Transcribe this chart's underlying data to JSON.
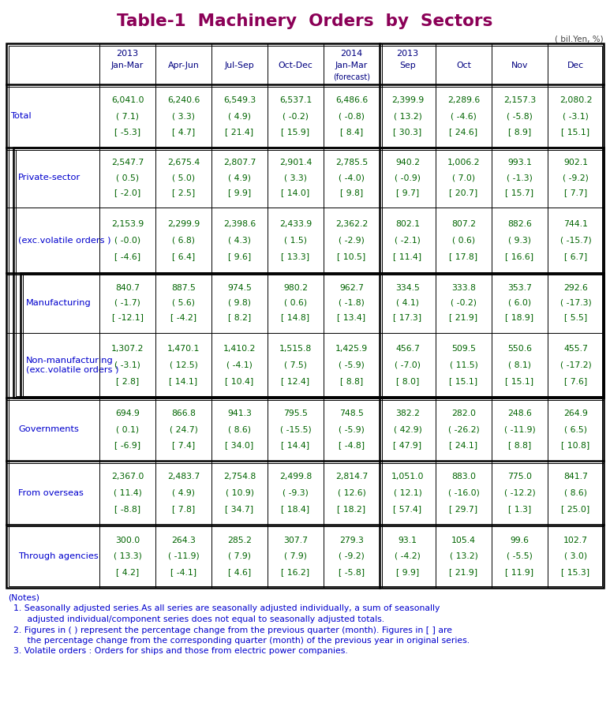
{
  "title": "Table-1  Machinery  Orders  by  Sectors",
  "title_color": "#8B0057",
  "unit_text": "( bil.Yen, %)",
  "header_color": "#000080",
  "data_color": "#006400",
  "label_color": "#0000CD",
  "notes_color": "#0000CD",
  "period_labels": [
    "Jan-Mar",
    "Apr-Jun",
    "Jul-Sep",
    "Oct-Dec",
    "Jan-Mar",
    "Sep",
    "Oct",
    "Nov",
    "Dec"
  ],
  "year_row1": [
    "2013",
    "",
    "",
    "",
    "2014",
    "2013",
    "",
    "",
    ""
  ],
  "forecast_col": 4,
  "row_sections": [
    {
      "label": "Total",
      "indent": 0,
      "group_border": 0,
      "lines": [
        [
          "6,041.0",
          "6,240.6",
          "6,549.3",
          "6,537.1",
          "6,486.6",
          "2,399.9",
          "2,289.6",
          "2,157.3",
          "2,080.2"
        ],
        [
          "( 7.1)",
          "( 3.3)",
          "( 4.9)",
          "( -0.2)",
          "( -0.8)",
          "( 13.2)",
          "( -4.6)",
          "( -5.8)",
          "( -3.1)"
        ],
        [
          "[ -5.3]",
          "[ 4.7]",
          "[ 21.4]",
          "[ 15.9]",
          "[ 8.4]",
          "[ 30.3]",
          "[ 24.6]",
          "[ 8.9]",
          "[ 15.1]"
        ]
      ]
    },
    {
      "label": "Private-sector",
      "indent": 1,
      "group_border": 1,
      "lines": [
        [
          "2,547.7",
          "2,675.4",
          "2,807.7",
          "2,901.4",
          "2,785.5",
          "940.2",
          "1,006.2",
          "993.1",
          "902.1"
        ],
        [
          "( 0.5)",
          "( 5.0)",
          "( 4.9)",
          "( 3.3)",
          "( -4.0)",
          "( -0.9)",
          "( 7.0)",
          "( -1.3)",
          "( -9.2)"
        ],
        [
          "[ -2.0]",
          "[ 2.5]",
          "[ 9.9]",
          "[ 14.0]",
          "[ 9.8]",
          "[ 9.7]",
          "[ 20.7]",
          "[ 15.7]",
          "[ 7.7]"
        ]
      ]
    },
    {
      "label": "(exc.volatile orders )",
      "indent": 1,
      "group_border": 0,
      "lines": [
        [
          "2,153.9",
          "2,299.9",
          "2,398.6",
          "2,433.9",
          "2,362.2",
          "802.1",
          "807.2",
          "882.6",
          "744.1"
        ],
        [
          "( -0.0)",
          "( 6.8)",
          "( 4.3)",
          "( 1.5)",
          "( -2.9)",
          "( -2.1)",
          "( 0.6)",
          "( 9.3)",
          "( -15.7)"
        ],
        [
          "[ -4.6]",
          "[ 6.4]",
          "[ 9.6]",
          "[ 13.3]",
          "[ 10.5]",
          "[ 11.4]",
          "[ 17.8]",
          "[ 16.6]",
          "[ 6.7]"
        ]
      ]
    },
    {
      "label": "Manufacturing",
      "indent": 2,
      "group_border": 2,
      "lines": [
        [
          "840.7",
          "887.5",
          "974.5",
          "980.2",
          "962.7",
          "334.5",
          "333.8",
          "353.7",
          "292.6"
        ],
        [
          "( -1.7)",
          "( 5.6)",
          "( 9.8)",
          "( 0.6)",
          "( -1.8)",
          "( 4.1)",
          "( -0.2)",
          "( 6.0)",
          "( -17.3)"
        ],
        [
          "[ -12.1]",
          "[ -4.2]",
          "[ 8.2]",
          "[ 14.8]",
          "[ 13.4]",
          "[ 17.3]",
          "[ 21.9]",
          "[ 18.9]",
          "[ 5.5]"
        ]
      ]
    },
    {
      "label": "Non-manufacturing\n(exc.volatile orders )",
      "indent": 2,
      "group_border": 0,
      "lines": [
        [
          "1,307.2",
          "1,470.1",
          "1,410.2",
          "1,515.8",
          "1,425.9",
          "456.7",
          "509.5",
          "550.6",
          "455.7"
        ],
        [
          "( -3.1)",
          "( 12.5)",
          "( -4.1)",
          "( 7.5)",
          "( -5.9)",
          "( -7.0)",
          "( 11.5)",
          "( 8.1)",
          "( -17.2)"
        ],
        [
          "[ 2.8]",
          "[ 14.1]",
          "[ 10.4]",
          "[ 12.4]",
          "[ 8.8]",
          "[ 8.0]",
          "[ 15.1]",
          "[ 15.1]",
          "[ 7.6]"
        ]
      ]
    },
    {
      "label": "Governments",
      "indent": 1,
      "group_border": 1,
      "lines": [
        [
          "694.9",
          "866.8",
          "941.3",
          "795.5",
          "748.5",
          "382.2",
          "282.0",
          "248.6",
          "264.9"
        ],
        [
          "( 0.1)",
          "( 24.7)",
          "( 8.6)",
          "( -15.5)",
          "( -5.9)",
          "( 42.9)",
          "( -26.2)",
          "( -11.9)",
          "( 6.5)"
        ],
        [
          "[ -6.9]",
          "[ 7.4]",
          "[ 34.0]",
          "[ 14.4]",
          "[ -4.8]",
          "[ 47.9]",
          "[ 24.1]",
          "[ 8.8]",
          "[ 10.8]"
        ]
      ]
    },
    {
      "label": "From overseas",
      "indent": 1,
      "group_border": 1,
      "lines": [
        [
          "2,367.0",
          "2,483.7",
          "2,754.8",
          "2,499.8",
          "2,814.7",
          "1,051.0",
          "883.0",
          "775.0",
          "841.7"
        ],
        [
          "( 11.4)",
          "( 4.9)",
          "( 10.9)",
          "( -9.3)",
          "( 12.6)",
          "( 12.1)",
          "( -16.0)",
          "( -12.2)",
          "( 8.6)"
        ],
        [
          "[ -8.8]",
          "[ 7.8]",
          "[ 34.7]",
          "[ 18.4]",
          "[ 18.2]",
          "[ 57.4]",
          "[ 29.7]",
          "[ 1.3]",
          "[ 25.0]"
        ]
      ]
    },
    {
      "label": "Through agencies",
      "indent": 1,
      "group_border": 1,
      "lines": [
        [
          "300.0",
          "264.3",
          "285.2",
          "307.7",
          "279.3",
          "93.1",
          "105.4",
          "99.6",
          "102.7"
        ],
        [
          "( 13.3)",
          "( -11.9)",
          "( 7.9)",
          "( 7.9)",
          "( -9.2)",
          "( -4.2)",
          "( 13.2)",
          "( -5.5)",
          "( 3.0)"
        ],
        [
          "[ 4.2]",
          "[ -4.1]",
          "[ 4.6]",
          "[ 16.2]",
          "[ -5.8]",
          "[ 9.9]",
          "[ 21.9]",
          "[ 11.9]",
          "[ 15.3]"
        ]
      ]
    }
  ],
  "notes_lines": [
    [
      "(Notes)",
      false
    ],
    [
      "  1. Seasonally adjusted series.As all series are seasonally adjusted individually, a sum of seasonally",
      false
    ],
    [
      "       adjusted individual/component series does not equal to seasonally adjusted totals.",
      false
    ],
    [
      "  2. Figures in ( ) represent the percentage change from the previous quarter (month). Figures in [ ] are",
      false
    ],
    [
      "       the percentage change from the corresponding quarter (month) of the previous year in original series.",
      false
    ],
    [
      "  3. Volatile orders : Orders for ships and those from electric power companies.",
      false
    ]
  ]
}
